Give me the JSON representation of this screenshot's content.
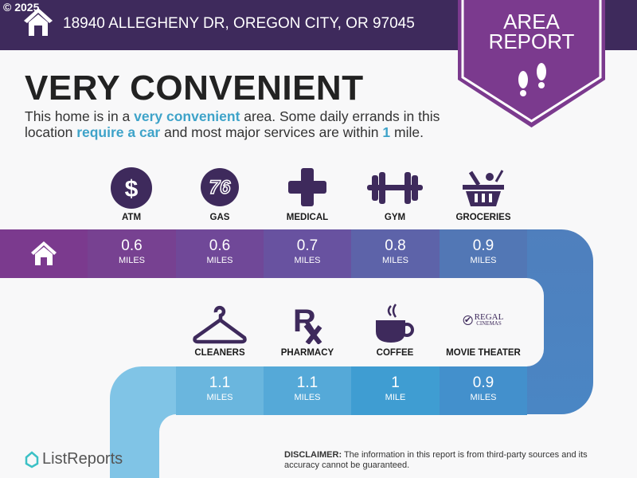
{
  "header": {
    "copyright": "© 2025",
    "address": "18940 ALLEGHENY DR, OREGON CITY, OR 97045",
    "badge_line1": "AREA",
    "badge_line2": "REPORT"
  },
  "summary": {
    "title": "VERY CONVENIENT",
    "p1": "This home is in a ",
    "h1": "very convenient",
    "p2": " area. Some daily errands in this location ",
    "h2": "require a car",
    "p3": " and most major services are within ",
    "h3": "1",
    "p4": " mile."
  },
  "top_row": [
    {
      "label": "ATM",
      "value": "0.6",
      "unit": "MILES",
      "icon": "dollar-icon"
    },
    {
      "label": "GAS",
      "value": "0.6",
      "unit": "MILES",
      "icon": "76-gas-icon"
    },
    {
      "label": "MEDICAL",
      "value": "0.7",
      "unit": "MILES",
      "icon": "medical-cross-icon"
    },
    {
      "label": "GYM",
      "value": "0.8",
      "unit": "MILES",
      "icon": "dumbbell-icon"
    },
    {
      "label": "GROCERIES",
      "value": "0.9",
      "unit": "MILES",
      "icon": "basket-icon"
    }
  ],
  "bottom_row": [
    {
      "label": "CLEANERS",
      "value": "1.1",
      "unit": "MILES",
      "icon": "hanger-icon"
    },
    {
      "label": "PHARMACY",
      "value": "1.1",
      "unit": "MILES",
      "icon": "rx-icon"
    },
    {
      "label": "COFFEE",
      "value": "1",
      "unit": "MILE",
      "icon": "coffee-icon"
    },
    {
      "label": "MOVIE THEATER",
      "value": "0.9",
      "unit": "MILES",
      "icon": "regal-cinemas-logo",
      "logo_text1": "REGAL",
      "logo_text2": "CINEMAS"
    }
  ],
  "footer": {
    "brand": "ListReports",
    "disclaimer_label": "DISCLAIMER:",
    "disclaimer": " The information in this report is from third-party sources and its accuracy cannot be guaranteed."
  },
  "colors": {
    "header": "#3e2a5c",
    "badge": "#7b3a8e",
    "icon": "#3e2a5c",
    "highlight": "#3ea3c9"
  }
}
